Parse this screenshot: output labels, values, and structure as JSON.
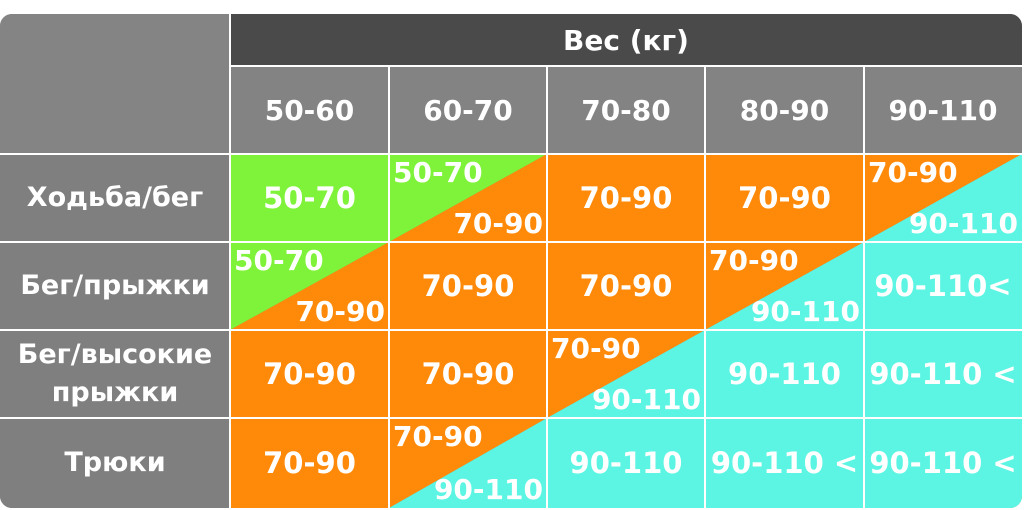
{
  "colors": {
    "green": "#7ff23a",
    "orange": "#ff8a0a",
    "cyan": "#5cf5e3",
    "header_dark": "#4a4a4a",
    "header_gray": "#838383"
  },
  "table": {
    "super_header": "Вес (кг)",
    "weight_columns": [
      "50-60",
      "60-70",
      "70-80",
      "80-90",
      "90-110"
    ],
    "rows": [
      {
        "label": "Ходьба/бег",
        "cells": [
          {
            "type": "solid",
            "color": "green",
            "text": "50-70"
          },
          {
            "type": "split",
            "top_color": "green",
            "bottom_color": "orange",
            "top_text": "50-70",
            "bottom_text": "70-90"
          },
          {
            "type": "solid",
            "color": "orange",
            "text": "70-90"
          },
          {
            "type": "solid",
            "color": "orange",
            "text": "70-90"
          },
          {
            "type": "split",
            "top_color": "orange",
            "bottom_color": "cyan",
            "top_text": "70-90",
            "bottom_text": "90-110"
          }
        ]
      },
      {
        "label": "Бег/прыжки",
        "cells": [
          {
            "type": "split",
            "top_color": "green",
            "bottom_color": "orange",
            "top_text": "50-70",
            "bottom_text": "70-90"
          },
          {
            "type": "solid",
            "color": "orange",
            "text": "70-90"
          },
          {
            "type": "solid",
            "color": "orange",
            "text": "70-90"
          },
          {
            "type": "split",
            "top_color": "orange",
            "bottom_color": "cyan",
            "top_text": "70-90",
            "bottom_text": "90-110"
          },
          {
            "type": "solid",
            "color": "cyan",
            "text": "90-110<"
          }
        ]
      },
      {
        "label": "Бег/высокие прыжки",
        "cells": [
          {
            "type": "solid",
            "color": "orange",
            "text": "70-90"
          },
          {
            "type": "solid",
            "color": "orange",
            "text": "70-90"
          },
          {
            "type": "split",
            "top_color": "orange",
            "bottom_color": "cyan",
            "top_text": "70-90",
            "bottom_text": "90-110"
          },
          {
            "type": "solid",
            "color": "cyan",
            "text": "90-110"
          },
          {
            "type": "solid",
            "color": "cyan",
            "text": "90-110 <"
          }
        ]
      },
      {
        "label": "Трюки",
        "cells": [
          {
            "type": "solid",
            "color": "orange",
            "text": "70-90"
          },
          {
            "type": "split",
            "top_color": "orange",
            "bottom_color": "cyan",
            "top_text": "70-90",
            "bottom_text": "90-110"
          },
          {
            "type": "solid",
            "color": "cyan",
            "text": "90-110"
          },
          {
            "type": "solid",
            "color": "cyan",
            "text": "90-110 <"
          },
          {
            "type": "solid",
            "color": "cyan",
            "text": "90-110 <"
          }
        ]
      }
    ]
  }
}
